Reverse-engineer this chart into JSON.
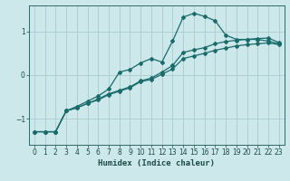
{
  "xlabel": "Humidex (Indice chaleur)",
  "bg_color": "#cce8ea",
  "grid_color": "#aaccce",
  "line_color": "#1a6b6b",
  "spine_color": "#336666",
  "tick_color": "#1a4a4a",
  "xlim": [
    -0.5,
    23.5
  ],
  "ylim": [
    -1.6,
    1.6
  ],
  "yticks": [
    -1,
    0,
    1
  ],
  "xticks": [
    0,
    1,
    2,
    3,
    4,
    5,
    6,
    7,
    8,
    9,
    10,
    11,
    12,
    13,
    14,
    15,
    16,
    17,
    18,
    19,
    20,
    21,
    22,
    23
  ],
  "line1_x": [
    0,
    1,
    2,
    3,
    4,
    5,
    6,
    7,
    8,
    9,
    10,
    11,
    12,
    13,
    14,
    15,
    16,
    17,
    18,
    19,
    20,
    21,
    22,
    23
  ],
  "line1_y": [
    -1.3,
    -1.3,
    -1.3,
    -0.82,
    -0.72,
    -0.6,
    -0.48,
    -0.32,
    0.07,
    0.13,
    0.28,
    0.38,
    0.3,
    0.78,
    1.33,
    1.42,
    1.35,
    1.25,
    0.92,
    0.82,
    0.82,
    0.82,
    0.78,
    0.72
  ],
  "line2_x": [
    0,
    1,
    2,
    3,
    4,
    5,
    6,
    7,
    8,
    9,
    10,
    11,
    12,
    13,
    14,
    15,
    16,
    17,
    18,
    19,
    20,
    21,
    22,
    23
  ],
  "line2_y": [
    -1.3,
    -1.3,
    -1.3,
    -0.82,
    -0.75,
    -0.65,
    -0.55,
    -0.43,
    -0.35,
    -0.27,
    -0.13,
    -0.07,
    0.07,
    0.22,
    0.52,
    0.58,
    0.63,
    0.72,
    0.77,
    0.8,
    0.82,
    0.84,
    0.85,
    0.75
  ],
  "line3_x": [
    0,
    1,
    2,
    3,
    4,
    5,
    6,
    7,
    8,
    9,
    10,
    11,
    12,
    13,
    14,
    15,
    16,
    17,
    18,
    19,
    20,
    21,
    22,
    23
  ],
  "line3_y": [
    -1.3,
    -1.3,
    -1.3,
    -0.82,
    -0.75,
    -0.65,
    -0.57,
    -0.45,
    -0.37,
    -0.29,
    -0.15,
    -0.1,
    0.02,
    0.14,
    0.38,
    0.44,
    0.5,
    0.57,
    0.62,
    0.67,
    0.7,
    0.72,
    0.74,
    0.7
  ]
}
